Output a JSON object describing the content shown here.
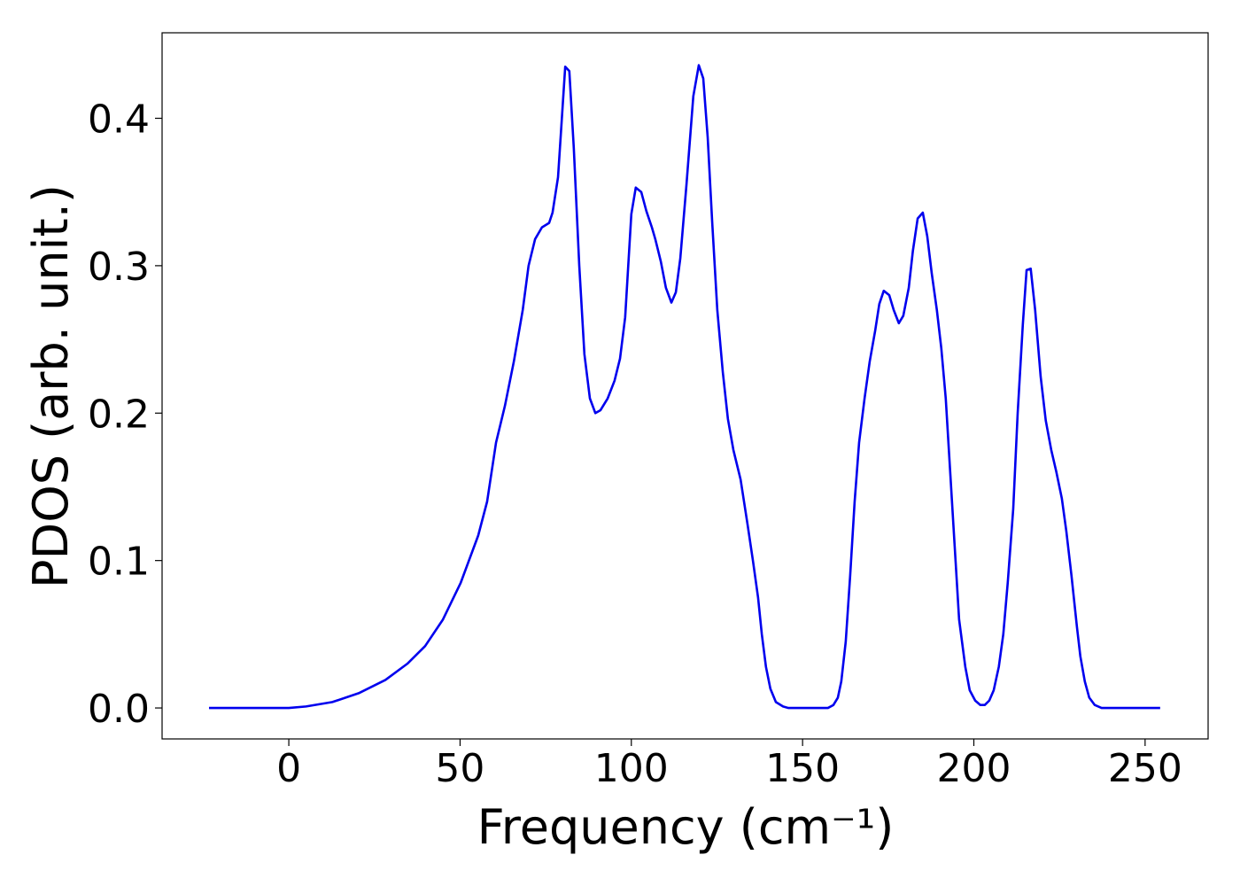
{
  "chart_data": {
    "type": "line",
    "xlabel": "Frequency (cm⁻¹)",
    "ylabel": "PDOS (arb. unit.)",
    "color": "#0000ee",
    "xlim": [
      -37,
      268.4
    ],
    "ylim": [
      -0.021,
      0.458
    ],
    "xticks": [
      0,
      50,
      100,
      150,
      200,
      250
    ],
    "yticks": [
      {
        "value": 0,
        "label": "0.0"
      },
      0.1,
      0.2,
      0.3,
      0.4
    ],
    "x": [
      -23.3,
      0,
      5,
      12.7,
      20.4,
      28.2,
      34.6,
      39.8,
      45,
      50.2,
      55.3,
      57.9,
      60.5,
      63.1,
      65.7,
      68.3,
      70,
      71.9,
      73.9,
      76,
      77,
      78.6,
      80.7,
      81.9,
      83.2,
      84.8,
      86.3,
      87.9,
      89.5,
      91,
      93.1,
      95.1,
      96.7,
      98.2,
      100,
      101.3,
      102.9,
      104.4,
      106,
      107,
      108.6,
      110.1,
      111.7,
      113,
      114.3,
      116.1,
      118.1,
      119.7,
      121,
      122.3,
      123.6,
      125.1,
      126.7,
      128.2,
      129.8,
      131.9,
      133.9,
      135.5,
      137,
      138.1,
      139.3,
      140.6,
      142.2,
      144.3,
      145.8,
      157.4,
      159,
      160.3,
      161.3,
      162.6,
      163.9,
      165.2,
      166.5,
      168.1,
      169.6,
      171.2,
      172.4,
      173.7,
      175.3,
      176.6,
      178.1,
      179.4,
      181,
      182.2,
      183.6,
      185.1,
      186.4,
      187.7,
      189.2,
      190.5,
      191.8,
      193.1,
      194.4,
      195.7,
      197.5,
      198.8,
      200.4,
      201.9,
      203.2,
      204.5,
      205.8,
      207.3,
      208.6,
      209.9,
      211.5,
      212.8,
      214.3,
      215.4,
      216.6,
      217.9,
      219.5,
      221,
      222.6,
      224.1,
      225.7,
      227,
      228.5,
      230.1,
      231.1,
      232.4,
      233.7,
      235.3,
      237.3,
      254.4
    ],
    "values": [
      0,
      0,
      0.001,
      0.004,
      0.01,
      0.019,
      0.03,
      0.042,
      0.06,
      0.085,
      0.117,
      0.14,
      0.18,
      0.205,
      0.235,
      0.27,
      0.3,
      0.318,
      0.326,
      0.329,
      0.336,
      0.36,
      0.435,
      0.432,
      0.38,
      0.3,
      0.24,
      0.21,
      0.2,
      0.202,
      0.21,
      0.222,
      0.237,
      0.265,
      0.335,
      0.353,
      0.35,
      0.337,
      0.326,
      0.318,
      0.303,
      0.285,
      0.275,
      0.282,
      0.305,
      0.355,
      0.415,
      0.436,
      0.427,
      0.387,
      0.33,
      0.27,
      0.228,
      0.196,
      0.175,
      0.155,
      0.125,
      0.1,
      0.075,
      0.05,
      0.028,
      0.013,
      0.004,
      0.001,
      0,
      0,
      0.002,
      0.007,
      0.018,
      0.045,
      0.09,
      0.14,
      0.18,
      0.21,
      0.235,
      0.256,
      0.274,
      0.283,
      0.28,
      0.27,
      0.261,
      0.266,
      0.285,
      0.31,
      0.332,
      0.336,
      0.32,
      0.295,
      0.27,
      0.244,
      0.21,
      0.16,
      0.11,
      0.06,
      0.028,
      0.012,
      0.005,
      0.002,
      0.002,
      0.005,
      0.012,
      0.028,
      0.05,
      0.085,
      0.135,
      0.2,
      0.26,
      0.297,
      0.298,
      0.27,
      0.225,
      0.195,
      0.175,
      0.16,
      0.142,
      0.12,
      0.09,
      0.055,
      0.035,
      0.018,
      0.007,
      0.002,
      0,
      0
    ]
  }
}
